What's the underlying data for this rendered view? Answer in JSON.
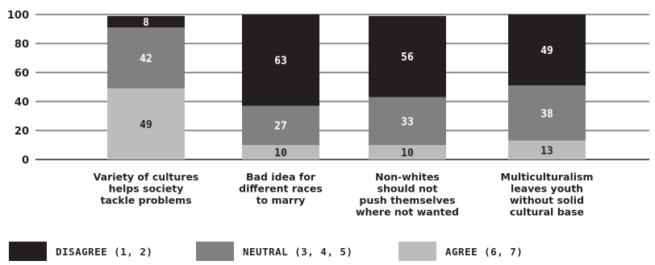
{
  "chart_data": {
    "type": "bar",
    "stacked": true,
    "title": "",
    "xlabel": "",
    "ylabel": "",
    "ylim": [
      0,
      100
    ],
    "yticks": [
      "0",
      "20",
      "40",
      "60",
      "80",
      "100"
    ],
    "grid": true,
    "legend_position": "bottom",
    "categories": [
      [
        "Variety of cultures",
        "helps society",
        "tackle problems"
      ],
      [
        "Bad idea for",
        "different races",
        "to marry"
      ],
      [
        "Non-whites",
        "should not",
        "push themselves",
        "where not wanted"
      ],
      [
        "Multiculturalism",
        "leaves youth",
        "without solid",
        "cultural base"
      ]
    ],
    "series": [
      {
        "name": "AGREE (6, 7)",
        "color": "#bcbcbe",
        "text_color": "#222222",
        "values": [
          49,
          10,
          10,
          13
        ]
      },
      {
        "name": "NEUTRAL (3, 4, 5)",
        "color": "#808082",
        "text_color": "#ffffff",
        "values": [
          42,
          27,
          33,
          38
        ]
      },
      {
        "name": "DISAGREE (1, 2)",
        "color": "#231f20",
        "text_color": "#ffffff",
        "values": [
          8,
          63,
          56,
          49
        ]
      }
    ],
    "legend_order": [
      2,
      1,
      0
    ]
  }
}
